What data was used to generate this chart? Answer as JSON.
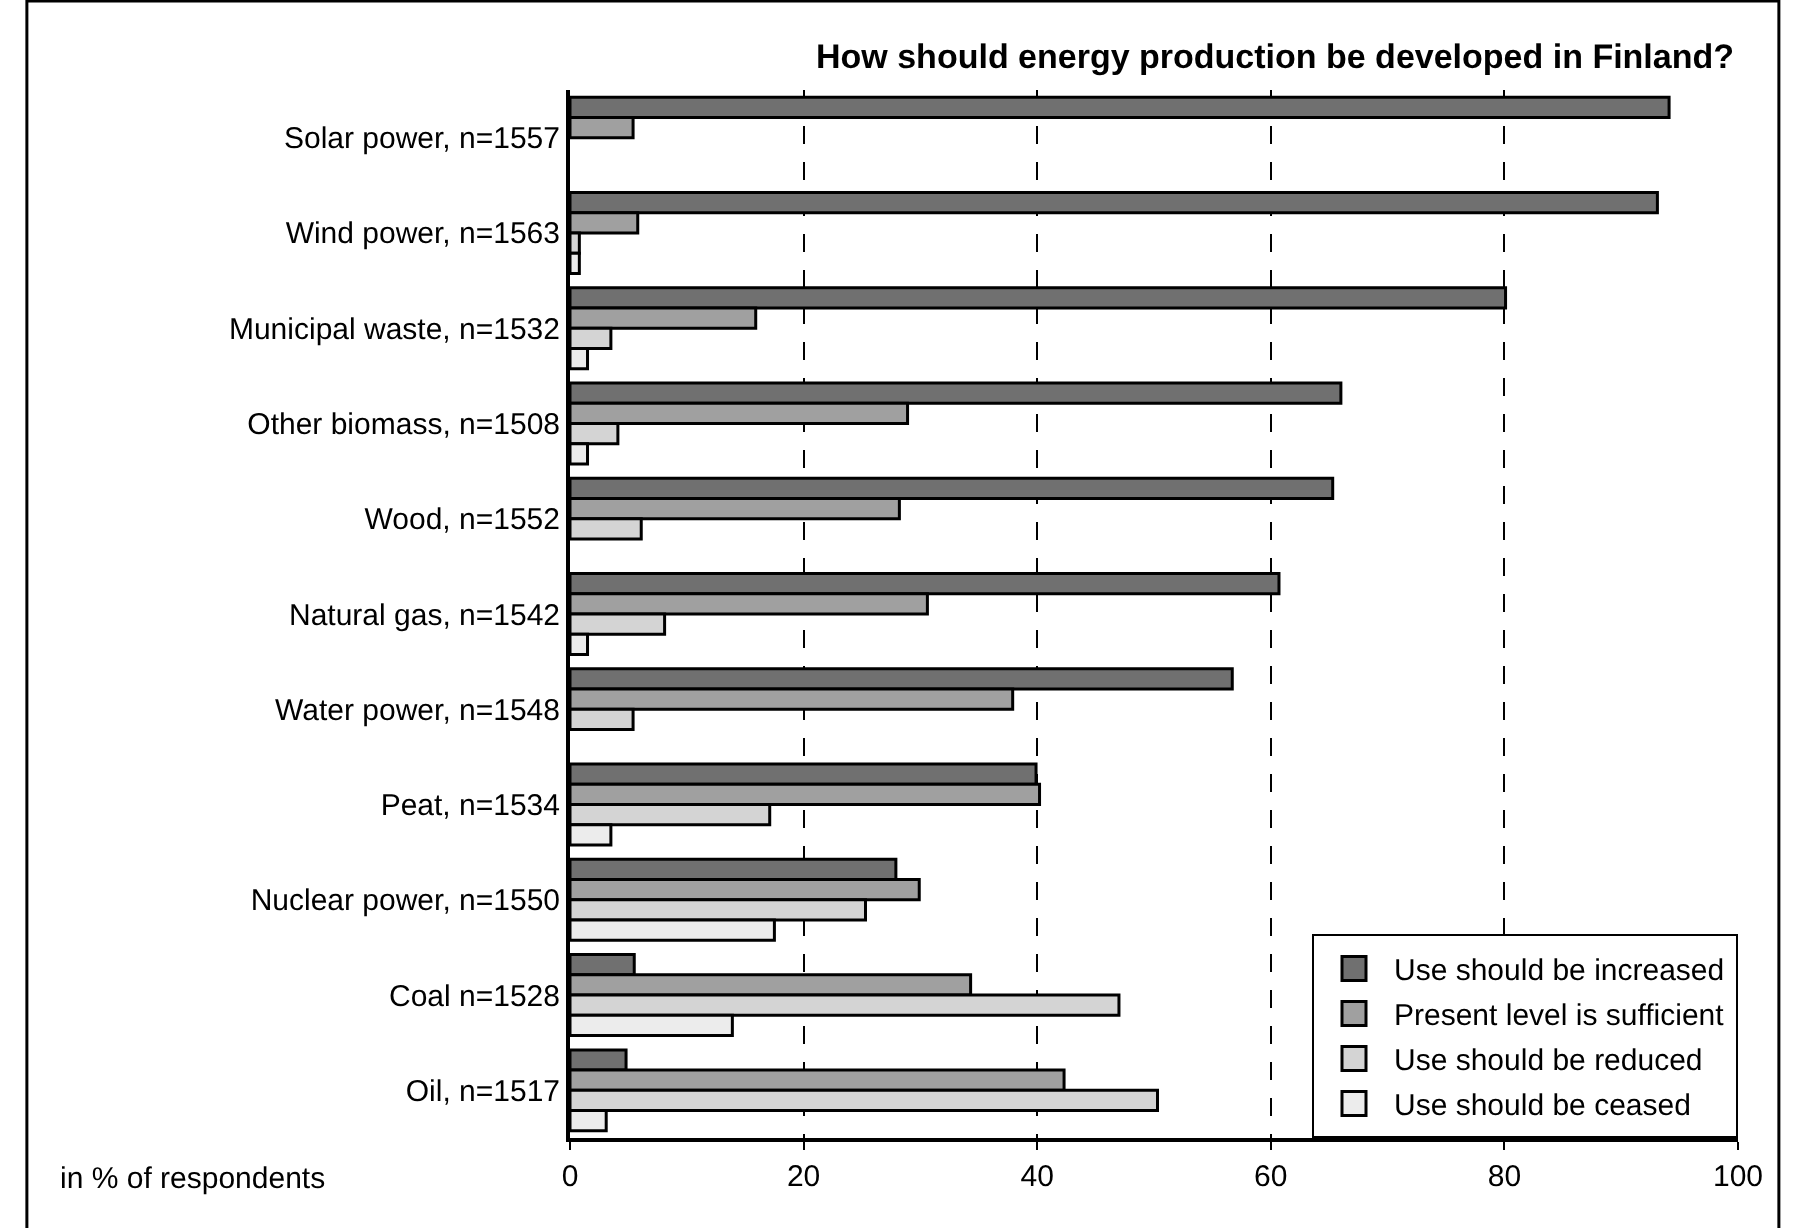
{
  "chart_data": {
    "type": "bar",
    "orientation": "horizontal",
    "title": "How should energy production be developed in Finland?",
    "xlabel": "in % of respondents",
    "categories": [
      "Solar power, n=1557",
      "Wind power, n=1563",
      "Municipal waste, n=1532",
      "Other biomass, n=1508",
      "Wood, n=1552",
      "Natural gas, n=1542",
      "Water power, n=1548",
      "Peat, n=1534",
      "Nuclear power, n=1550",
      "Coal n=1528",
      "Oil, n=1517"
    ],
    "series": [
      {
        "name": "Use should be increased",
        "color": "#707070",
        "values": [
          94.1,
          93.1,
          80.1,
          66.0,
          65.3,
          60.7,
          56.7,
          39.9,
          27.9,
          5.5,
          4.8
        ]
      },
      {
        "name": "Present level is sufficient",
        "color": "#a0a0a0",
        "values": [
          5.4,
          5.8,
          15.9,
          28.9,
          28.2,
          30.6,
          37.9,
          40.2,
          29.9,
          34.3,
          42.3
        ]
      },
      {
        "name": "Use should be reduced",
        "color": "#d4d4d4",
        "values": [
          null,
          0.8,
          3.5,
          4.1,
          6.1,
          8.1,
          5.4,
          17.1,
          25.3,
          47.0,
          50.3
        ]
      },
      {
        "name": "Use should be ceased",
        "color": "#ececec",
        "values": [
          null,
          0.8,
          1.5,
          1.5,
          null,
          1.5,
          null,
          3.5,
          17.5,
          13.9,
          3.1
        ]
      }
    ],
    "xlim": [
      0,
      100
    ],
    "xticks": [
      0,
      20,
      40,
      60,
      80,
      100
    ],
    "grid": "x",
    "legend": "bottom right"
  }
}
